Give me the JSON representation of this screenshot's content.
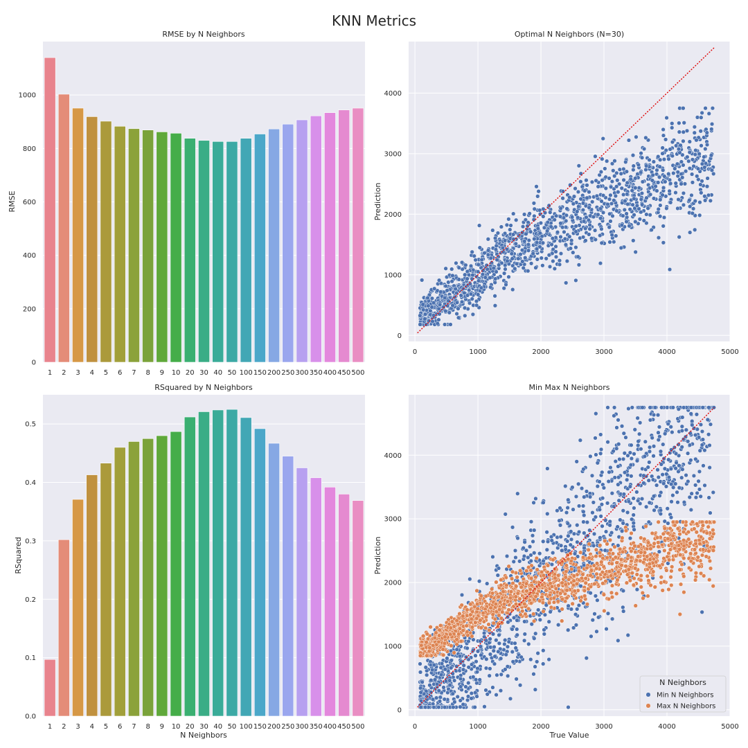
{
  "figure": {
    "title": "KNN Metrics"
  },
  "chart_data": [
    {
      "type": "bar",
      "title": "RMSE by N Neighbors",
      "xlabel": "",
      "ylabel": "RMSE",
      "ylim": [
        0,
        1200
      ],
      "yticks": [
        0,
        200,
        400,
        600,
        800,
        1000
      ],
      "categories": [
        "1",
        "2",
        "3",
        "4",
        "5",
        "6",
        "7",
        "8",
        "9",
        "10",
        "20",
        "30",
        "40",
        "50",
        "100",
        "150",
        "200",
        "250",
        "300",
        "350",
        "400",
        "450",
        "500"
      ],
      "values": [
        1140,
        1003,
        951,
        919,
        902,
        883,
        874,
        869,
        862,
        857,
        838,
        830,
        826,
        826,
        838,
        854,
        873,
        891,
        907,
        922,
        934,
        944,
        951
      ],
      "colors": [
        "#e8838d",
        "#e48c78",
        "#d69846",
        "#c0913f",
        "#ab9a3b",
        "#a19f3a",
        "#8ba23a",
        "#7aa23a",
        "#5fa83a",
        "#45ad49",
        "#3aaf71",
        "#3aad86",
        "#3aab98",
        "#3ca9a5",
        "#42a7b5",
        "#4ba7c9",
        "#86a8e4",
        "#9aa6ee",
        "#b7a0f0",
        "#d890ea",
        "#e388dd",
        "#e58ad0",
        "#e98ec3"
      ]
    },
    {
      "type": "bar",
      "title": "RSquared by N Neighbors",
      "xlabel": "N Neighbors",
      "ylabel": "RSquared",
      "ylim": [
        0,
        0.55
      ],
      "yticks": [
        0.0,
        0.1,
        0.2,
        0.3,
        0.4,
        0.5
      ],
      "categories": [
        "1",
        "2",
        "3",
        "4",
        "5",
        "6",
        "7",
        "8",
        "9",
        "10",
        "20",
        "30",
        "40",
        "50",
        "100",
        "150",
        "200",
        "250",
        "300",
        "350",
        "400",
        "450",
        "500"
      ],
      "values": [
        0.097,
        0.302,
        0.371,
        0.413,
        0.433,
        0.46,
        0.47,
        0.475,
        0.48,
        0.487,
        0.512,
        0.521,
        0.524,
        0.525,
        0.511,
        0.492,
        0.467,
        0.445,
        0.425,
        0.408,
        0.392,
        0.38,
        0.369
      ],
      "colors": [
        "#e8838d",
        "#e48c78",
        "#d69846",
        "#c0913f",
        "#ab9a3b",
        "#a19f3a",
        "#8ba23a",
        "#7aa23a",
        "#5fa83a",
        "#45ad49",
        "#3aaf71",
        "#3aad86",
        "#3aab98",
        "#3ca9a5",
        "#42a7b5",
        "#4ba7c9",
        "#86a8e4",
        "#9aa6ee",
        "#b7a0f0",
        "#d890ea",
        "#e388dd",
        "#e58ad0",
        "#e98ec3"
      ]
    },
    {
      "type": "scatter",
      "title": "Optimal N Neighbors (N=30)",
      "xlabel": "",
      "ylabel": "Prediction",
      "xlim": [
        -100,
        5000
      ],
      "ylim": [
        -100,
        4850
      ],
      "xticks": [
        0,
        1000,
        2000,
        3000,
        4000,
        5000
      ],
      "yticks": [
        0,
        1000,
        2000,
        3000,
        4000
      ],
      "diagonal": [
        [
          40,
          40
        ],
        [
          4750,
          4750
        ]
      ],
      "series": [
        {
          "color": "#4c72b0",
          "n": 1500,
          "y_floor": 180,
          "y_ceil": 3750,
          "spread": 0.55
        }
      ]
    },
    {
      "type": "scatter",
      "title": "Min Max N Neighbors",
      "xlabel": "True Value",
      "ylabel": "Prediction",
      "xlim": [
        -100,
        5000
      ],
      "ylim": [
        -100,
        4950
      ],
      "xticks": [
        0,
        1000,
        2000,
        3000,
        4000,
        5000
      ],
      "yticks": [
        0,
        1000,
        2000,
        3000,
        4000
      ],
      "diagonal": [
        [
          40,
          40
        ],
        [
          4750,
          4750
        ]
      ],
      "legend": {
        "title": "N Neighbors",
        "position": "lower-right"
      },
      "series": [
        {
          "name": "Min N Neighbors",
          "color": "#4c72b0",
          "n": 1500,
          "y_floor": 40,
          "y_ceil": 4750,
          "spread": 1.1
        },
        {
          "name": "Max N Neighbors",
          "color": "#dd8452",
          "n": 1500,
          "y_floor": 850,
          "y_ceil": 2950,
          "spread": 0.32
        }
      ]
    }
  ]
}
